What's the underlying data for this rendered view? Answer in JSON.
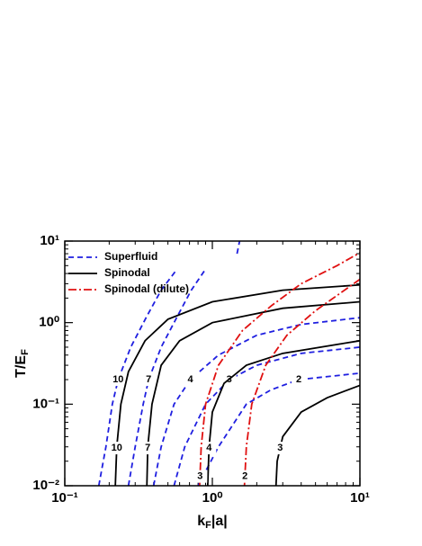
{
  "chart_data": {
    "type": "line",
    "x_label": [
      "k",
      "F",
      "|a|"
    ],
    "y_label": [
      "T/E",
      "F"
    ],
    "xlog": true,
    "ylog": true,
    "xlim": [
      0.1,
      10
    ],
    "ylim": [
      0.01,
      10
    ],
    "xticks": [
      {
        "value": 0.1,
        "label": "10⁻¹"
      },
      {
        "value": 1,
        "label": "10⁰"
      },
      {
        "value": 10,
        "label": "10¹"
      }
    ],
    "yticks": [
      {
        "value": 0.01,
        "label": "10⁻²"
      },
      {
        "value": 0.1,
        "label": "10⁻¹"
      },
      {
        "value": 1,
        "label": "10⁰"
      },
      {
        "value": 10,
        "label": "10¹"
      }
    ],
    "xminor_ticks": [
      0.2,
      0.3,
      0.4,
      0.5,
      0.6,
      0.7,
      0.8,
      0.9,
      2,
      3,
      4,
      5,
      6,
      7,
      8,
      9
    ],
    "yminor_ticks": [
      0.02,
      0.03,
      0.04,
      0.05,
      0.06,
      0.07,
      0.08,
      0.09,
      0.2,
      0.3,
      0.4,
      0.5,
      0.6,
      0.7,
      0.8,
      0.9,
      2,
      3,
      4,
      5,
      6,
      7,
      8,
      9
    ],
    "legend": "upper left",
    "series": [
      {
        "name": "Superfluid",
        "color": "#1f1fe0",
        "dash": "dashed",
        "curves": [
          {
            "label": "10",
            "x": [
              0.17,
              0.19,
              0.21,
              0.23,
              0.28,
              0.36,
              0.45,
              0.57
            ],
            "values": [
              0.01,
              0.03,
              0.1,
              0.2,
              0.5,
              1.2,
              2.5,
              4.4
            ]
          },
          {
            "label": "7",
            "x": [
              0.27,
              0.3,
              0.34,
              0.37,
              0.45,
              0.58,
              0.72,
              0.89
            ],
            "values": [
              0.01,
              0.03,
              0.1,
              0.2,
              0.5,
              1.2,
              2.5,
              4.4
            ]
          },
          {
            "label": "4",
            "x": [
              0.4,
              0.45,
              0.55,
              0.71,
              1.1,
              2,
              4,
              10
            ],
            "values": [
              0.01,
              0.03,
              0.1,
              0.2,
              0.4,
              0.7,
              0.95,
              1.15
            ]
          },
          {
            "label": "3",
            "x": [
              0.55,
              0.65,
              0.9,
              1.3,
              2,
              4,
              10
            ],
            "values": [
              0.01,
              0.03,
              0.1,
              0.2,
              0.3,
              0.42,
              0.5
            ]
          },
          {
            "label": "2",
            "x": [
              0.8,
              1.1,
              1.7,
              2.5,
              3.85,
              10
            ],
            "values": [
              0.01,
              0.03,
              0.1,
              0.15,
              0.2,
              0.24
            ]
          },
          {
            "label": null,
            "x": [
              1.47,
              1.53
            ],
            "values": [
              7,
              10
            ]
          }
        ]
      },
      {
        "name": "Spinodal",
        "color": "#000000",
        "dash": "solid",
        "curves": [
          {
            "label": "10",
            "x": [
              0.22,
              0.225,
              0.24,
              0.27,
              0.35,
              0.5,
              1,
              3,
              10
            ],
            "values": [
              0.01,
              0.03,
              0.1,
              0.25,
              0.6,
              1.1,
              1.8,
              2.5,
              2.9
            ]
          },
          {
            "label": "7",
            "x": [
              0.36,
              0.365,
              0.39,
              0.45,
              0.6,
              1,
              3,
              10
            ],
            "values": [
              0.01,
              0.03,
              0.1,
              0.3,
              0.6,
              1,
              1.5,
              1.8
            ]
          },
          {
            "label": "4",
            "x": [
              0.93,
              0.95,
              1.0,
              1.2,
              1.7,
              3,
              10
            ],
            "values": [
              0.01,
              0.03,
              0.08,
              0.18,
              0.3,
              0.42,
              0.6
            ]
          },
          {
            "label": "3",
            "x": [
              2.7,
              2.75,
              3,
              4,
              6,
              10
            ],
            "values": [
              0.01,
              0.02,
              0.04,
              0.08,
              0.12,
              0.17
            ]
          }
        ]
      },
      {
        "name": "Spinodal (dilute)",
        "color": "#e01010",
        "dash": "dashdot",
        "curves": [
          {
            "label": "3",
            "x": [
              0.82,
              0.84,
              0.9,
              1.1,
              1.6,
              2.5,
              4,
              7,
              10
            ],
            "values": [
              0.01,
              0.03,
              0.1,
              0.3,
              0.8,
              1.6,
              3,
              5,
              7.2
            ]
          },
          {
            "label": "2",
            "x": [
              1.65,
              1.7,
              1.85,
              2.3,
              3.2,
              5,
              10
            ],
            "values": [
              0.01,
              0.03,
              0.1,
              0.3,
              0.7,
              1.4,
              3.4
            ]
          }
        ]
      }
    ]
  }
}
